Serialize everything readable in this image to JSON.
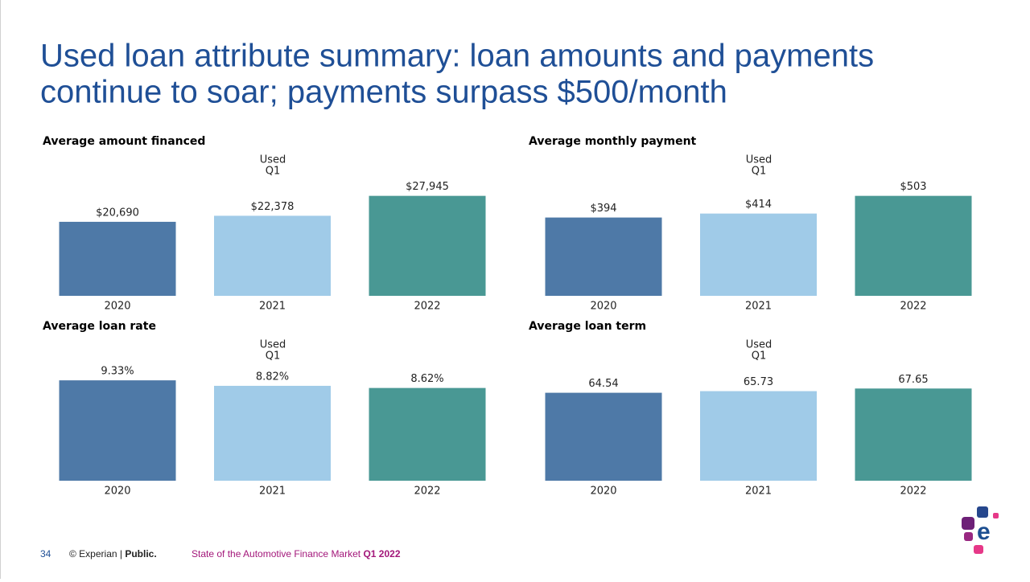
{
  "title": [
    "Used loan attribute summary: loan amounts and payments",
    "continue to soar; payments surpass $500/month"
  ],
  "chart_data": [
    {
      "type": "bar",
      "title": "Average amount financed",
      "subtitle": [
        "Used",
        "Q1"
      ],
      "categories": [
        "2020",
        "2021",
        "2022"
      ],
      "values": [
        20690,
        22378,
        27945
      ],
      "value_labels": [
        "$20,690",
        "$22,378",
        "$27,945"
      ],
      "colors": [
        "#4e79a7",
        "#a0cbe8",
        "#499894"
      ],
      "ylim": [
        0,
        40000
      ]
    },
    {
      "type": "bar",
      "title": "Average monthly payment",
      "subtitle": [
        "Used",
        "Q1"
      ],
      "categories": [
        "2020",
        "2021",
        "2022"
      ],
      "values": [
        394,
        414,
        503
      ],
      "value_labels": [
        "$394",
        "$414",
        "$503"
      ],
      "colors": [
        "#4e79a7",
        "#a0cbe8",
        "#499894"
      ],
      "ylim": [
        0,
        720
      ]
    },
    {
      "type": "bar",
      "title": "Average loan rate",
      "subtitle": [
        "Used",
        "Q1"
      ],
      "categories": [
        "2020",
        "2021",
        "2022"
      ],
      "values": [
        9.33,
        8.82,
        8.62
      ],
      "value_labels": [
        "9.33%",
        "8.82%",
        "8.62%"
      ],
      "colors": [
        "#4e79a7",
        "#a0cbe8",
        "#499894"
      ],
      "ylim": [
        0,
        13.3
      ]
    },
    {
      "type": "bar",
      "title": "Average loan term",
      "subtitle": [
        "Used",
        "Q1"
      ],
      "categories": [
        "2020",
        "2021",
        "2022"
      ],
      "values": [
        64.54,
        65.73,
        67.65
      ],
      "colors": [
        "#4e79a7",
        "#a0cbe8",
        "#499894"
      ],
      "ylim": [
        0,
        105
      ]
    }
  ],
  "footer": {
    "page": "34",
    "copyright": "© Experian | ",
    "classification": "Public.",
    "source": "State of the Automotive Finance Market ",
    "source_period": "Q1 2022"
  }
}
